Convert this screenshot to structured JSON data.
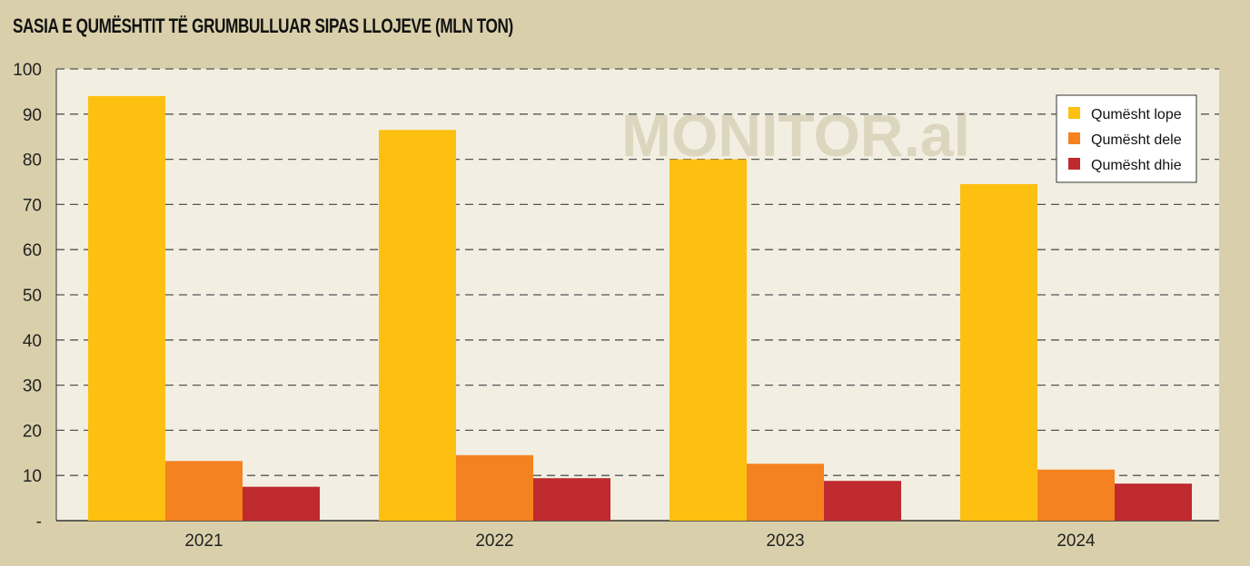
{
  "chart_data": {
    "type": "bar",
    "title": "SASIA E QUMËSHTIT TË GRUMBULLUAR SIPAS LLOJEVE (MLN TON)",
    "watermark": "MONITOR.al",
    "categories": [
      "2021",
      "2022",
      "2023",
      "2024"
    ],
    "series": [
      {
        "name": "Qumësht lope",
        "color": "#fdc010",
        "values": [
          94,
          86.5,
          80,
          74.5
        ]
      },
      {
        "name": "Qumësht dele",
        "color": "#f58220",
        "values": [
          13.2,
          14.5,
          12.6,
          11.3
        ]
      },
      {
        "name": "Qumësht dhie",
        "color": "#be2a2e",
        "values": [
          7.5,
          9.4,
          8.8,
          8.2
        ]
      }
    ],
    "yticks": [
      "-",
      "10",
      "20",
      "30",
      "40",
      "50",
      "60",
      "70",
      "80",
      "90",
      "100"
    ],
    "ylim": [
      0,
      100
    ],
    "grid": true,
    "legend_position": "top-right",
    "colors": {
      "background": "#d9d0ab",
      "plot_bg": "#f2efe2",
      "grid": "#555555"
    }
  }
}
